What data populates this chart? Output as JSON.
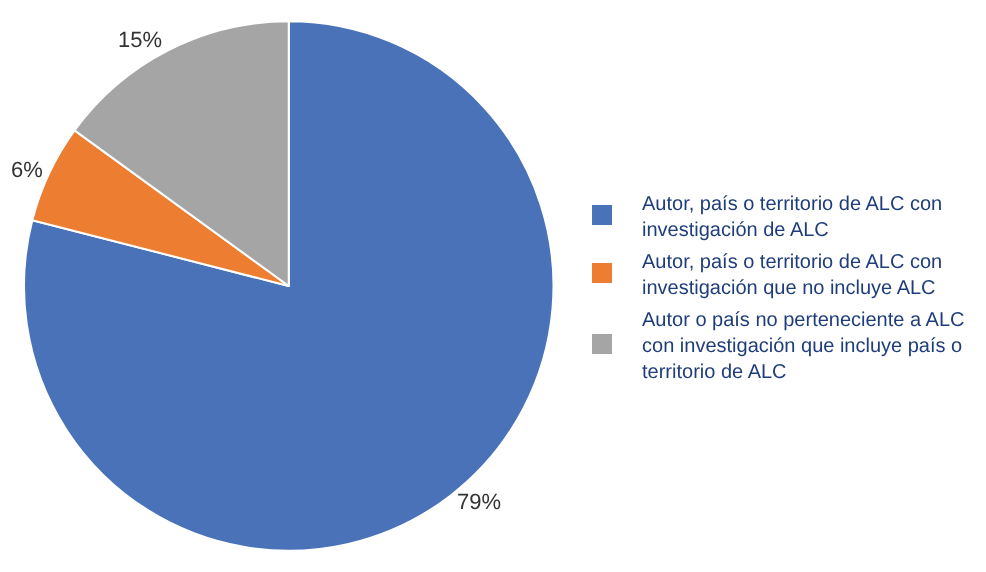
{
  "chart_data": {
    "type": "pie",
    "categories": [
      "Autor, país o territorio de ALC con investigación de ALC",
      "Autor, país o territorio de ALC con investigación que no incluye ALC",
      "Autor o país no perteneciente a ALC con investigación que incluye país o territorio de ALC"
    ],
    "values": [
      79,
      6,
      15
    ],
    "colors": [
      "#4a72b8",
      "#ed7d31",
      "#a5a5a5"
    ],
    "value_labels": [
      "79%",
      "6%",
      "15%"
    ],
    "legend": "right"
  }
}
